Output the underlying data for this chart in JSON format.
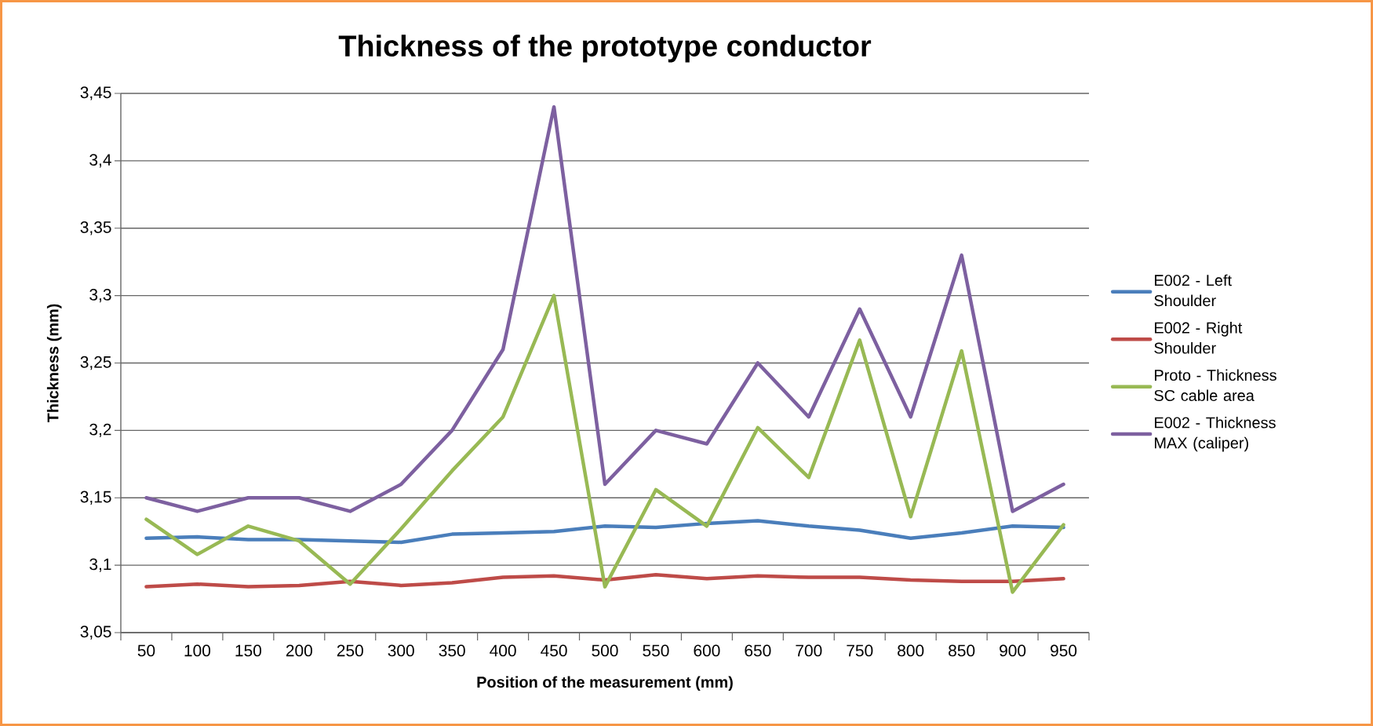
{
  "chart_data": {
    "type": "line",
    "title": "Thickness of the prototype conductor",
    "xlabel": "Position of the measurement (mm)",
    "ylabel": "Thickness (mm)",
    "categories": [
      "50",
      "100",
      "150",
      "200",
      "250",
      "300",
      "350",
      "400",
      "450",
      "500",
      "550",
      "600",
      "650",
      "700",
      "750",
      "800",
      "850",
      "900",
      "950"
    ],
    "series": [
      {
        "name": "E002 - Left Shoulder",
        "color": "#4a7ebb",
        "values": [
          3.12,
          3.121,
          3.119,
          3.119,
          3.118,
          3.117,
          3.123,
          3.124,
          3.125,
          3.129,
          3.128,
          3.131,
          3.133,
          3.129,
          3.126,
          3.12,
          3.124,
          3.129,
          3.128
        ]
      },
      {
        "name": "E002 - Right Shoulder",
        "color": "#be4b48",
        "values": [
          3.084,
          3.086,
          3.084,
          3.085,
          3.088,
          3.085,
          3.087,
          3.091,
          3.092,
          3.089,
          3.093,
          3.09,
          3.092,
          3.091,
          3.091,
          3.089,
          3.088,
          3.088,
          3.09
        ]
      },
      {
        "name": "Proto - Thickness SC cable area",
        "color": "#98b954",
        "values": [
          3.134,
          3.108,
          3.129,
          3.118,
          3.086,
          3.127,
          3.17,
          3.21,
          3.3,
          3.084,
          3.156,
          3.129,
          3.202,
          3.165,
          3.267,
          3.136,
          3.259,
          3.08,
          3.13
        ]
      },
      {
        "name": "E002 - Thickness MAX (caliper)",
        "color": "#7d60a0",
        "values": [
          3.15,
          3.14,
          3.15,
          3.15,
          3.14,
          3.16,
          3.2,
          3.26,
          3.44,
          3.16,
          3.2,
          3.19,
          3.25,
          3.21,
          3.29,
          3.21,
          3.33,
          3.14,
          3.16
        ]
      }
    ],
    "ylim": [
      3.05,
      3.45
    ],
    "yticks": [
      {
        "value": 3.05,
        "label": "3,05"
      },
      {
        "value": 3.1,
        "label": "3,1"
      },
      {
        "value": 3.15,
        "label": "3,15"
      },
      {
        "value": 3.2,
        "label": "3,2"
      },
      {
        "value": 3.25,
        "label": "3,25"
      },
      {
        "value": 3.3,
        "label": "3,3"
      },
      {
        "value": 3.35,
        "label": "3,35"
      },
      {
        "value": 3.4,
        "label": "3,4"
      },
      {
        "value": 3.45,
        "label": "3,45"
      }
    ],
    "grid": "y",
    "legend": "right",
    "marker": "none",
    "line_style": "solid"
  }
}
